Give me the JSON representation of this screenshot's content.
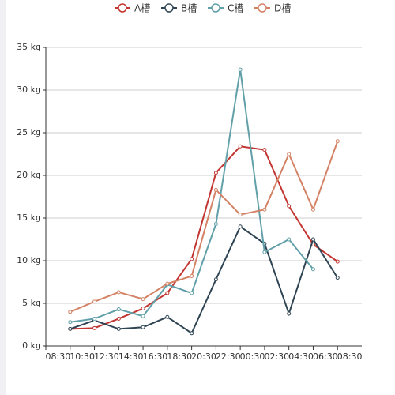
{
  "chart_data": {
    "type": "line",
    "categories": [
      "08:30",
      "10:30",
      "12:30",
      "14:30",
      "16:30",
      "18:30",
      "20:30",
      "22:30",
      "00:30",
      "02:30",
      "04:30",
      "06:30",
      "08:30"
    ],
    "series": [
      {
        "name": "A槽",
        "color": "#c23531",
        "values": [
          2.0,
          2.1,
          3.2,
          4.4,
          6.2,
          10.2,
          20.3,
          23.4,
          23.0,
          16.4,
          11.9,
          9.9,
          null
        ]
      },
      {
        "name": "B槽",
        "color": "#2f4554",
        "values": [
          2.0,
          3.0,
          2.0,
          2.2,
          3.4,
          1.5,
          7.8,
          14.0,
          12.0,
          3.8,
          12.5,
          8.0,
          null
        ]
      },
      {
        "name": "C槽",
        "color": "#61a0a8",
        "values": [
          2.8,
          3.2,
          4.3,
          3.5,
          7.2,
          6.2,
          14.3,
          32.4,
          11.0,
          12.5,
          9.0,
          null,
          null
        ]
      },
      {
        "name": "D槽",
        "color": "#d48265",
        "values": [
          4.0,
          5.2,
          6.3,
          5.5,
          7.3,
          8.2,
          18.3,
          15.4,
          16.0,
          22.5,
          16.0,
          24.0,
          null
        ]
      }
    ],
    "ylim": [
      0,
      35
    ],
    "yticks": [
      {
        "value": 0,
        "label": "0 kg"
      },
      {
        "value": 5,
        "label": "5 kg"
      },
      {
        "value": 10,
        "label": "10 kg"
      },
      {
        "value": 15,
        "label": "15 kg"
      },
      {
        "value": 20,
        "label": "20 kg"
      },
      {
        "value": 25,
        "label": "25 kg"
      },
      {
        "value": 30,
        "label": "30 kg"
      },
      {
        "value": 35,
        "label": "35 kg"
      }
    ],
    "grid": true,
    "legend": "top"
  }
}
